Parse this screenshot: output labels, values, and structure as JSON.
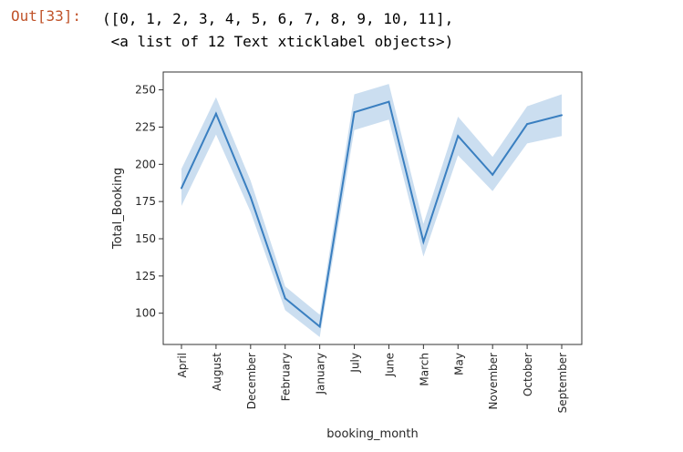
{
  "output": {
    "prompt": "Out[33]:",
    "line1": "([0, 1, 2, 3, 4, 5, 6, 7, 8, 9, 10, 11],",
    "line2": " <a list of 12 Text xticklabel objects>)"
  },
  "chart_data": {
    "type": "line",
    "xlabel": "booking_month",
    "ylabel": "Total_Booking",
    "categories": [
      "April",
      "August",
      "December",
      "February",
      "January",
      "July",
      "June",
      "March",
      "May",
      "November",
      "October",
      "September"
    ],
    "series": [
      {
        "values": [
          184,
          234,
          178,
          110,
          91,
          235,
          242,
          148,
          219,
          193,
          227,
          233
        ],
        "ci_low": [
          172,
          220,
          168,
          102,
          84,
          223,
          230,
          138,
          206,
          182,
          214,
          219
        ],
        "ci_high": [
          197,
          245,
          189,
          118,
          99,
          247,
          254,
          160,
          232,
          205,
          239,
          247
        ]
      }
    ],
    "yticks": [
      100,
      125,
      150,
      175,
      200,
      225,
      250
    ],
    "ylim": [
      79,
      262
    ],
    "line_color": "#3a7fc0",
    "band_color": "#a9c8e6",
    "grid": false
  }
}
